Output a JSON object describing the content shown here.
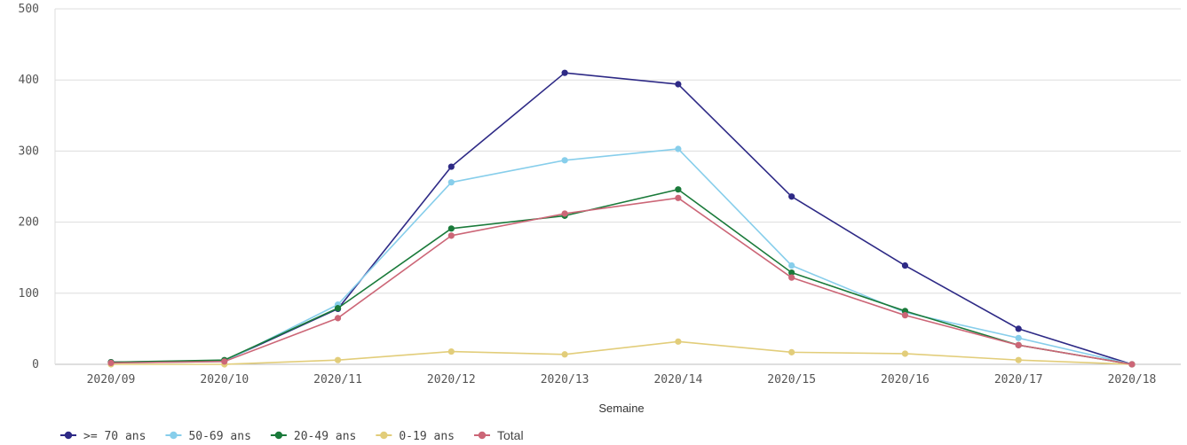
{
  "chart_data": {
    "type": "line",
    "xlabel": "Semaine",
    "ylabel": "",
    "ylim": [
      0,
      500
    ],
    "yticks": [
      0,
      100,
      200,
      300,
      400,
      500
    ],
    "grid": true,
    "legend_position": "bottom-left",
    "categories": [
      "2020/09",
      "2020/10",
      "2020/11",
      "2020/12",
      "2020/13",
      "2020/14",
      "2020/15",
      "2020/16",
      "2020/17",
      "2020/18"
    ],
    "series": [
      {
        "name": ">= 70 ans",
        "color": "#2e2a86",
        "values": [
          3,
          5,
          78,
          278,
          410,
          394,
          236,
          139,
          50,
          0
        ]
      },
      {
        "name": "50-69 ans",
        "color": "#87ceeb",
        "values": [
          2,
          4,
          84,
          256,
          287,
          303,
          139,
          73,
          37,
          0
        ]
      },
      {
        "name": "20-49 ans",
        "color": "#1a7a3a",
        "values": [
          3,
          6,
          79,
          191,
          209,
          246,
          129,
          75,
          27,
          0
        ]
      },
      {
        "name": "0-19 ans",
        "color": "#e2cd7a",
        "values": [
          0,
          0,
          6,
          18,
          14,
          32,
          17,
          15,
          6,
          0
        ]
      },
      {
        "name": "Total",
        "color": "#cc6677",
        "values": [
          2,
          4,
          65,
          181,
          212,
          234,
          122,
          69,
          27,
          0
        ]
      }
    ]
  }
}
